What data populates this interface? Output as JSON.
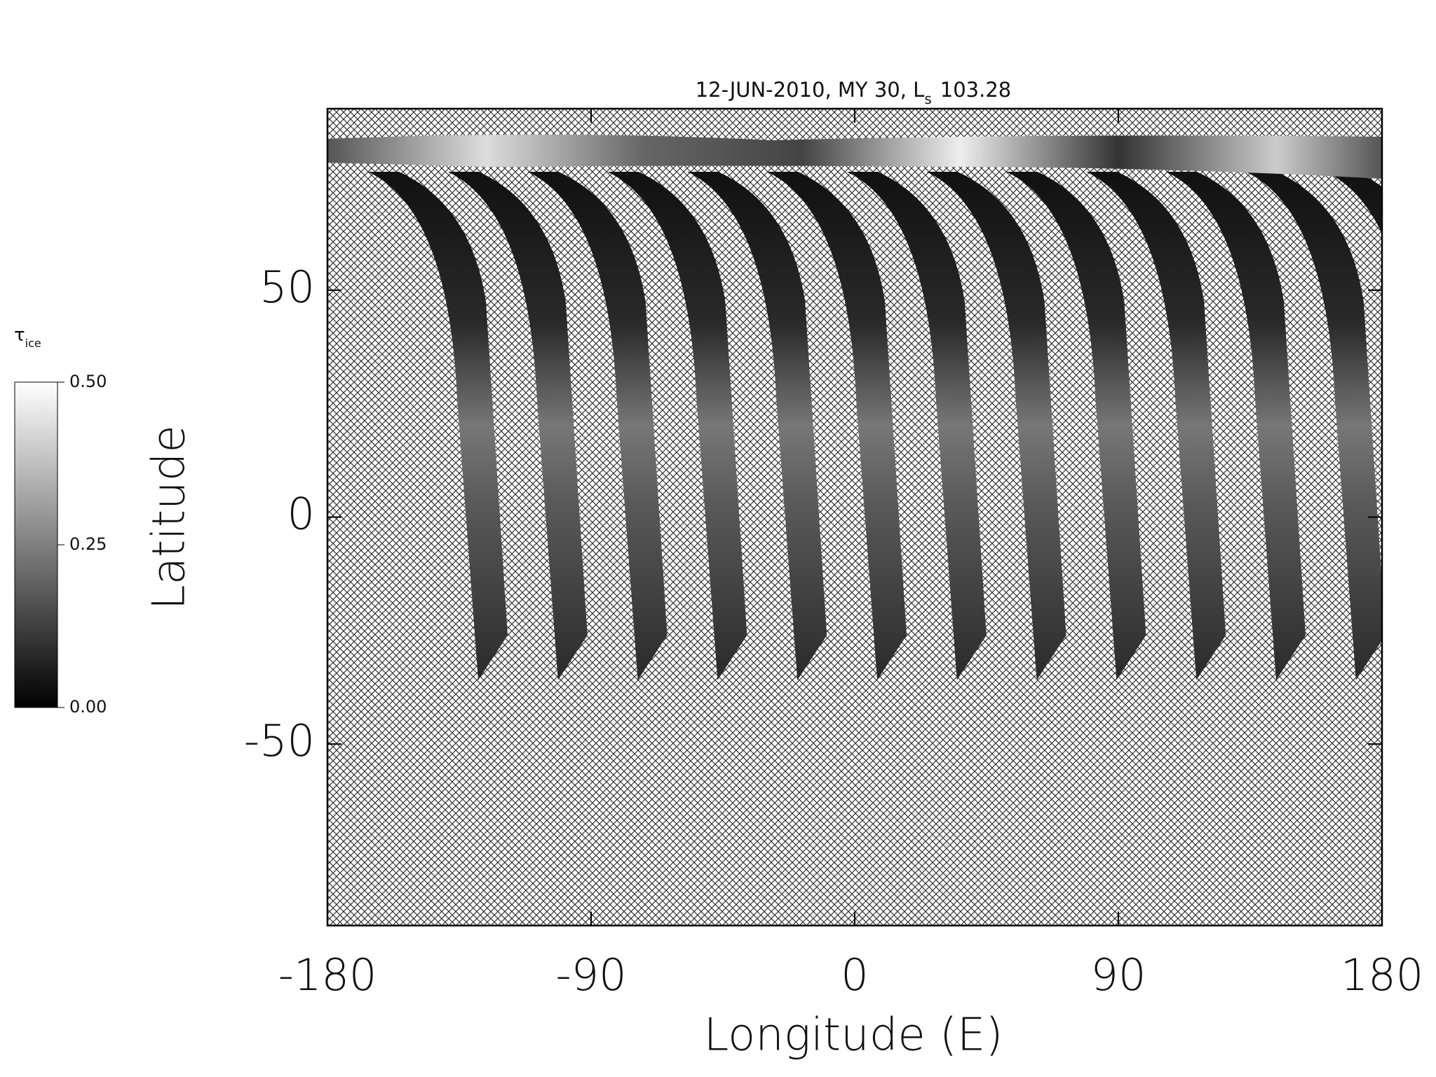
{
  "chart_data": {
    "type": "map",
    "title": "12-JUN-2010, MY 30,  L",
    "title_subscript": "s",
    "title_value": "103.28",
    "xlabel": "Longitude (E)",
    "ylabel": "Latitude",
    "xlim": [
      -180,
      180
    ],
    "xticks": [
      -180,
      -90,
      0,
      90,
      180
    ],
    "ylim": [
      -90,
      90
    ],
    "yticks": [
      -50,
      0,
      50
    ],
    "colorbar": {
      "label": "τ",
      "label_subscript": "ice",
      "lim": [
        0,
        0.5
      ],
      "ticks": [
        {
          "value": 0,
          "label": "0.00"
        },
        {
          "value": 0.25,
          "label": "0.25"
        },
        {
          "value": 0.5,
          "label": "0.50"
        }
      ]
    }
  }
}
